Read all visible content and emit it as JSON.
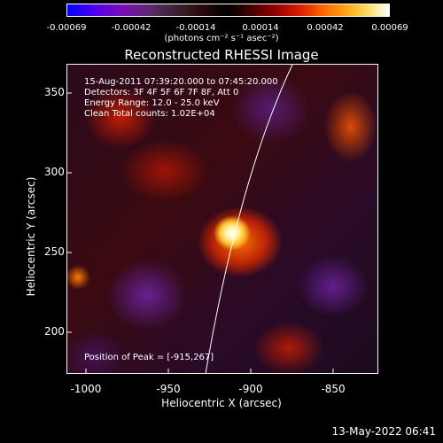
{
  "colorbar": {
    "ticks": [
      "-0.00069",
      "-0.00042",
      "-0.00014",
      "0.00014",
      "0.00042",
      "0.00069"
    ],
    "unit": "(photons cm⁻² s⁻¹ asec⁻²)"
  },
  "title": "Reconstructed RHESSI Image",
  "info": {
    "line1": "15-Aug-2011 07:39:20.000 to 07:45:20.000",
    "line2": "Detectors: 3F 4F 5F 6F 7F 8F, Att 0",
    "line3": "Energy Range: 12.0 - 25.0 keV",
    "line4": "Clean     Total counts: 1.02E+04"
  },
  "peak": "Position of Peak = [-915,267]",
  "axes": {
    "y_label": "Heliocentric Y (arcsec)",
    "x_label": "Heliocentric X (arcsec)",
    "y_ticks": [
      "350",
      "300",
      "250",
      "200"
    ],
    "x_ticks": [
      "-1000",
      "-950",
      "-900",
      "-850"
    ]
  },
  "footer_date": "13-May-2022 06:41"
}
